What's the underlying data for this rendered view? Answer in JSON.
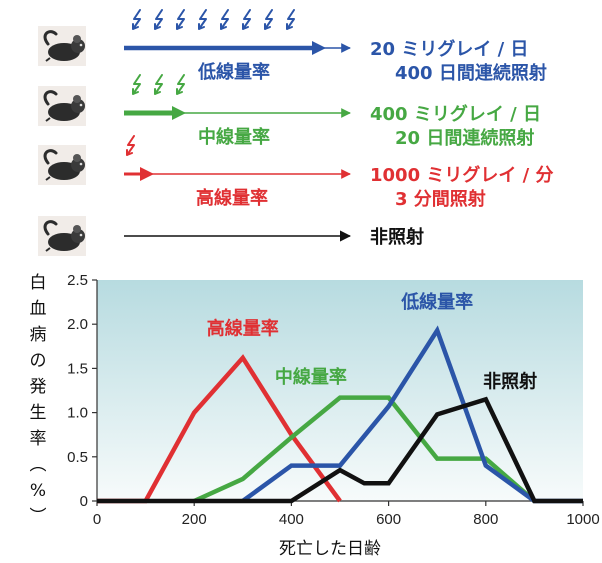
{
  "legend": {
    "rows": [
      {
        "name": "低線量率",
        "dose": "20 ミリグレイ / 日",
        "duration": "400 日間連続照射",
        "color": "#2b55a8",
        "bolts": 8
      },
      {
        "name": "中線量率",
        "dose": "400 ミリグレイ / 日",
        "duration": "20 日間連続照射",
        "color": "#46a843",
        "bolts": 3
      },
      {
        "name": "高線量率",
        "dose": "1000 ミリグレイ / 分",
        "duration": "3 分間照射",
        "color": "#e03033",
        "bolts": 1
      },
      {
        "name": "",
        "dose": "非照射",
        "duration": "",
        "color": "#111111",
        "bolts": 0
      }
    ],
    "icon": "mouse-icon",
    "bolt_icon": "lightning-bolt-icon"
  },
  "chart_data": {
    "type": "line",
    "ylabel": "白血病の発生率（%）",
    "xlabel": "死亡した日齢",
    "xlim": [
      0,
      1000
    ],
    "ylim": [
      0,
      2.5
    ],
    "xticks": [
      "0",
      "200",
      "400",
      "600",
      "800",
      "1000"
    ],
    "yticks": [
      "0",
      "0.5",
      "1.0",
      "1.5",
      "2.0",
      "2.5"
    ],
    "background": "gradient teal-to-white",
    "series": [
      {
        "name": "高線量率",
        "color": "#e03033",
        "points": [
          [
            0,
            0
          ],
          [
            100,
            0
          ],
          [
            200,
            1.0
          ],
          [
            300,
            1.62
          ],
          [
            400,
            0.75
          ],
          [
            500,
            0
          ]
        ]
      },
      {
        "name": "中線量率",
        "color": "#46a843",
        "points": [
          [
            200,
            0
          ],
          [
            300,
            0.25
          ],
          [
            400,
            0.72
          ],
          [
            500,
            1.17
          ],
          [
            600,
            1.17
          ],
          [
            700,
            0.48
          ],
          [
            800,
            0.48
          ],
          [
            900,
            0
          ]
        ]
      },
      {
        "name": "低線量率",
        "color": "#2b55a8",
        "points": [
          [
            300,
            0
          ],
          [
            400,
            0.4
          ],
          [
            500,
            0.4
          ],
          [
            600,
            1.07
          ],
          [
            700,
            1.93
          ],
          [
            800,
            0.4
          ],
          [
            900,
            0
          ],
          [
            1000,
            0
          ]
        ]
      },
      {
        "name": "非照射",
        "color": "#111111",
        "points": [
          [
            0,
            0
          ],
          [
            400,
            0
          ],
          [
            500,
            0.35
          ],
          [
            550,
            0.2
          ],
          [
            600,
            0.2
          ],
          [
            700,
            0.98
          ],
          [
            800,
            1.15
          ],
          [
            900,
            0
          ],
          [
            1000,
            0
          ]
        ]
      }
    ],
    "annotations": [
      {
        "text": "高線量率",
        "x": 300,
        "y": 1.95,
        "color": "#e03033"
      },
      {
        "text": "中線量率",
        "x": 440,
        "y": 1.4,
        "color": "#46a843"
      },
      {
        "text": "低線量率",
        "x": 700,
        "y": 2.25,
        "color": "#2b55a8"
      },
      {
        "text": "非照射",
        "x": 850,
        "y": 1.35,
        "color": "#111111"
      }
    ]
  }
}
